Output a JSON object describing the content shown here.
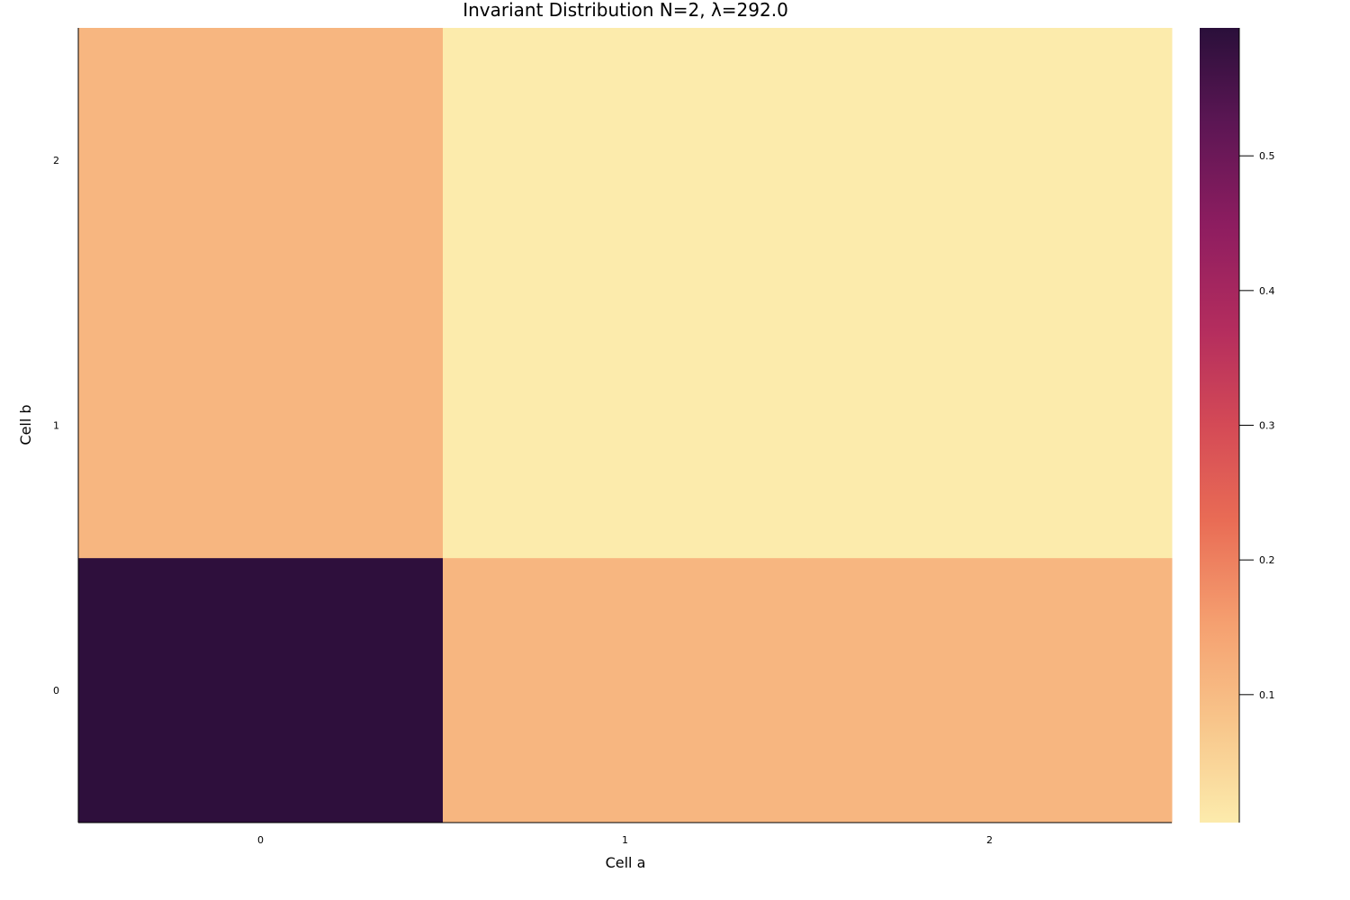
{
  "chart_data": {
    "type": "heatmap",
    "title": "Invariant Distribution N=2, λ=292.0",
    "xlabel": "Cell a",
    "ylabel": "Cell b",
    "x": [
      "0",
      "1",
      "2"
    ],
    "y": [
      "0",
      "1",
      "2"
    ],
    "values": [
      [
        0.59,
        0.11,
        0.11
      ],
      [
        0.11,
        0.005,
        0.005
      ],
      [
        0.11,
        0.005,
        0.005
      ]
    ],
    "colorbar": {
      "colormap": "magma (reversed)",
      "range": [
        0.005,
        0.595
      ],
      "ticks": [
        0.1,
        0.2,
        0.3,
        0.4,
        0.5
      ],
      "tick_labels": [
        "0.1",
        "0.2",
        "0.3",
        "0.4",
        "0.5"
      ]
    },
    "grid": false,
    "colors": {
      "low": "#fcebac",
      "high": "#2f0f3d"
    }
  }
}
